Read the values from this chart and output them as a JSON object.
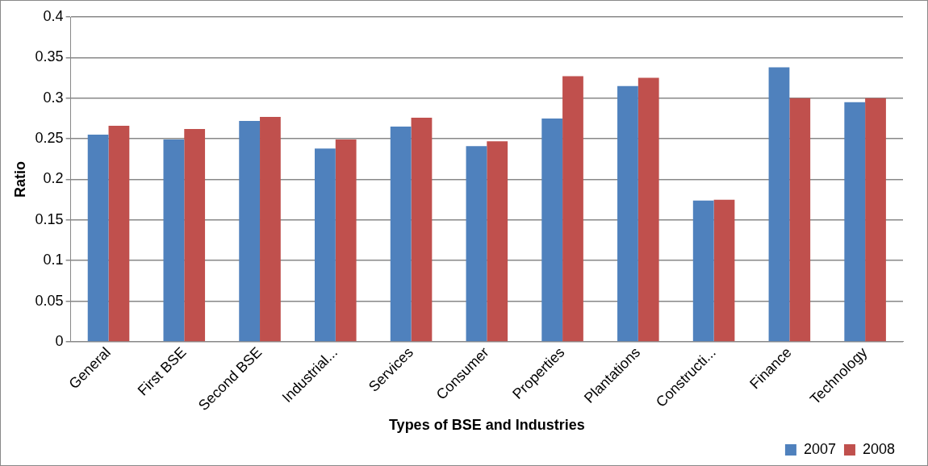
{
  "chart_data": {
    "type": "bar",
    "xlabel": "Types of BSE and Industries",
    "ylabel": "Ratio",
    "categories": [
      "General",
      "First BSE",
      "Second BSE",
      "Industrial...",
      "Services",
      "Consumer",
      "Properties",
      "Plantations",
      "Constructi...",
      "Finance",
      "Technology"
    ],
    "series": [
      {
        "name": "2007",
        "color": "#4f81bd",
        "values": [
          0.255,
          0.249,
          0.272,
          0.238,
          0.265,
          0.241,
          0.275,
          0.315,
          0.174,
          0.338,
          0.295
        ]
      },
      {
        "name": "2008",
        "color": "#c0504d",
        "values": [
          0.266,
          0.262,
          0.277,
          0.249,
          0.276,
          0.247,
          0.327,
          0.325,
          0.175,
          0.3,
          0.3
        ]
      }
    ],
    "ylim": [
      0,
      0.4
    ],
    "yticks": [
      0,
      0.05,
      0.1,
      0.15,
      0.2,
      0.25,
      0.3,
      0.35,
      0.4
    ],
    "grid": "y",
    "legend": "bottom right"
  }
}
